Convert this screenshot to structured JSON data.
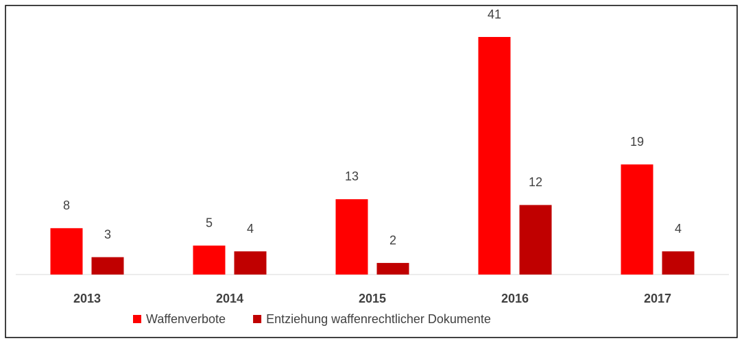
{
  "chart_data": {
    "type": "bar",
    "categories": [
      "2013",
      "2014",
      "2015",
      "2016",
      "2017"
    ],
    "series": [
      {
        "name": "Waffenverbote",
        "color": "#ff0000",
        "values": [
          8,
          5,
          13,
          41,
          19
        ]
      },
      {
        "name": "Entziehung waffenrechtlicher Dokumente",
        "color": "#c00000",
        "values": [
          3,
          4,
          2,
          12,
          4
        ]
      }
    ],
    "legend": "bottom"
  }
}
